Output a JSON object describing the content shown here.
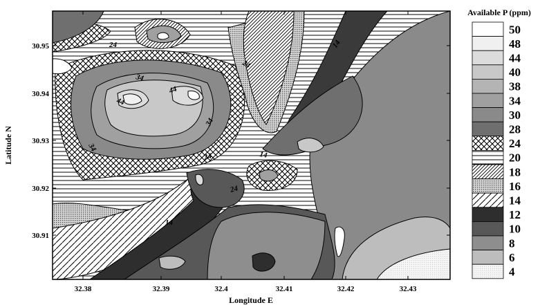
{
  "map": {
    "x_axis": {
      "title": "Longitude  E",
      "ticks": [
        "32.38",
        "32.39",
        "32.4",
        "32.41",
        "32.42",
        "32.43"
      ]
    },
    "y_axis": {
      "title": "Latitude N",
      "ticks": [
        "30.95",
        "30.94",
        "30.93",
        "30.92",
        "30.91"
      ]
    },
    "contour_labels": [
      "24",
      "24",
      "34",
      "44",
      "44",
      "34",
      "34",
      "24",
      "14",
      "24",
      "14",
      "14"
    ]
  },
  "legend": {
    "title": "Available P (ppm)",
    "entries": [
      {
        "label": "50",
        "fill": "#ffffff"
      },
      {
        "label": "48",
        "fill": "#f0f0f0"
      },
      {
        "label": "44",
        "fill": "#dcdcdc"
      },
      {
        "label": "40",
        "fill": "#c8c8c8"
      },
      {
        "label": "38",
        "fill": "#b4b4b4"
      },
      {
        "label": "34",
        "fill": "#a0a0a0"
      },
      {
        "label": "30",
        "fill": "#8a8a8a"
      },
      {
        "label": "28",
        "fill": "#6f6f6f"
      },
      {
        "label": "24",
        "fill": "pattern-crosshatch"
      },
      {
        "label": "20",
        "fill": "pattern-horizontal"
      },
      {
        "label": "18",
        "fill": "pattern-diagonal-dense"
      },
      {
        "label": "16",
        "fill": "pattern-dots"
      },
      {
        "label": "14",
        "fill": "pattern-diagonal-sparse"
      },
      {
        "label": "12",
        "fill": "#2e2e2e"
      },
      {
        "label": "10",
        "fill": "#585858"
      },
      {
        "label": "8",
        "fill": "#8e8e8e"
      },
      {
        "label": "6",
        "fill": "#bdbdbd"
      },
      {
        "label": "4",
        "fill": "pattern-fine-dots"
      }
    ]
  }
}
